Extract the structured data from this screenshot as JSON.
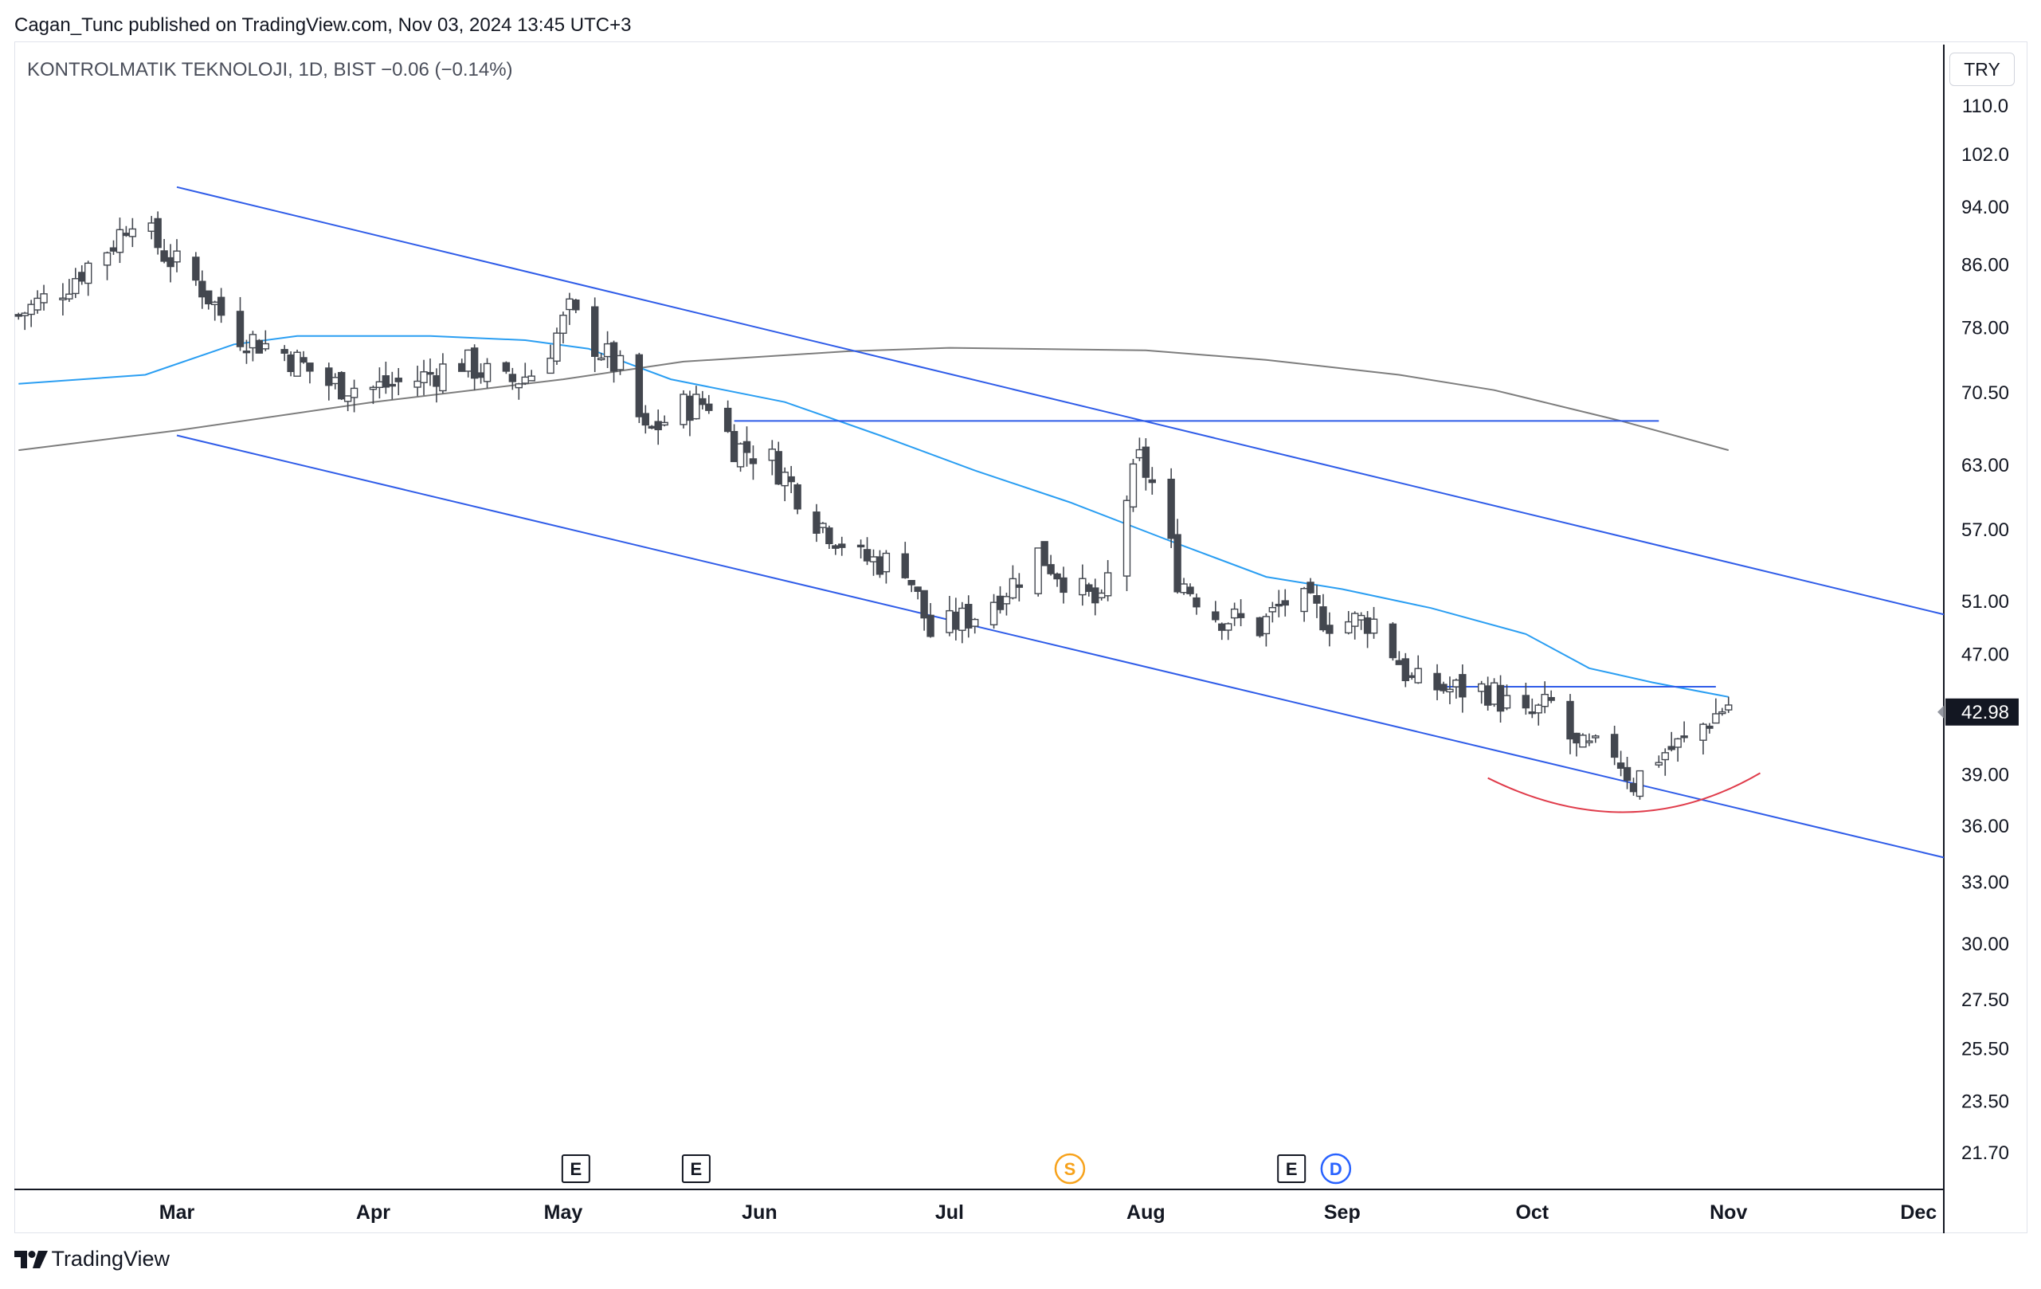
{
  "header": {
    "publish_text": "Cagan_Tunc published on TradingView.com, Nov 03, 2024 13:45 UTC+3"
  },
  "legend": {
    "symbol_text": "KONTROLMATIK TEKNOLOJI, 1D, BIST  −0.06 (−0.14%)"
  },
  "footer": {
    "brand": "TradingView",
    "logo_icon": "tradingview-logo-icon"
  },
  "colors": {
    "up": "#ffffff",
    "down": "#43474f",
    "wick": "#43474f",
    "ma_fast": "#2a9ef2",
    "ma_slow": "#7d7d7d",
    "trend": "#2f5ce8",
    "arc": "#e03c4b",
    "last_price": "#131722",
    "earnings": "#131722",
    "split": "#f7a21b",
    "dividend": "#2962ff"
  },
  "chart_data": {
    "type": "candlestick",
    "symbol": "KONTROLMATIK TEKNOLOJI",
    "interval": "1D",
    "exchange": "BIST",
    "change": "−0.06",
    "change_pct": "(−0.14%)",
    "currency": "TRY",
    "last_price": 42.98,
    "last_price_label": "42.98",
    "y_scale": "log",
    "ylim": [
      20.5,
      115
    ],
    "y_ticks": [
      "110.0",
      "102.0",
      "94.00",
      "86.00",
      "78.00",
      "70.50",
      "63.00",
      "57.00",
      "51.00",
      "47.00",
      "39.00",
      "36.00",
      "33.00",
      "30.00",
      "27.50",
      "25.50",
      "23.50",
      "21.70"
    ],
    "x_ticks": [
      {
        "label": "Mar",
        "date": "2024-03-01"
      },
      {
        "label": "Apr",
        "date": "2024-04-01"
      },
      {
        "label": "May",
        "date": "2024-05-01"
      },
      {
        "label": "Jun",
        "date": "2024-06-01"
      },
      {
        "label": "Jul",
        "date": "2024-07-01"
      },
      {
        "label": "Aug",
        "date": "2024-08-01"
      },
      {
        "label": "Sep",
        "date": "2024-09-01"
      },
      {
        "label": "Oct",
        "date": "2024-10-01"
      },
      {
        "label": "Nov",
        "date": "2024-11-01"
      },
      {
        "label": "Dec",
        "date": "2024-12-01"
      }
    ],
    "price_anchors": [
      [
        "2024-02-05",
        79.5
      ],
      [
        "2024-02-12",
        83.0
      ],
      [
        "2024-02-20",
        89.0
      ],
      [
        "2024-02-23",
        93.0
      ],
      [
        "2024-02-28",
        87.5
      ],
      [
        "2024-03-05",
        83.0
      ],
      [
        "2024-03-10",
        77.5
      ],
      [
        "2024-03-18",
        75.0
      ],
      [
        "2024-03-25",
        71.5
      ],
      [
        "2024-04-01",
        71.0
      ],
      [
        "2024-04-08",
        72.0
      ],
      [
        "2024-04-15",
        74.0
      ],
      [
        "2024-04-22",
        71.5
      ],
      [
        "2024-04-27",
        73.0
      ],
      [
        "2024-05-02",
        80.0
      ],
      [
        "2024-05-06",
        76.0
      ],
      [
        "2024-05-10",
        73.0
      ],
      [
        "2024-05-14",
        66.0
      ],
      [
        "2024-05-20",
        69.0
      ],
      [
        "2024-05-24",
        69.5
      ],
      [
        "2024-05-28",
        65.0
      ],
      [
        "2024-06-03",
        63.5
      ],
      [
        "2024-06-10",
        58.0
      ],
      [
        "2024-06-17",
        54.5
      ],
      [
        "2024-06-24",
        54.0
      ],
      [
        "2024-06-28",
        48.5
      ],
      [
        "2024-07-05",
        50.0
      ],
      [
        "2024-07-11",
        52.5
      ],
      [
        "2024-07-15",
        55.0
      ],
      [
        "2024-07-20",
        52.5
      ],
      [
        "2024-07-25",
        50.5
      ],
      [
        "2024-07-29",
        60.0
      ],
      [
        "2024-07-31",
        63.5
      ],
      [
        "2024-08-03",
        60.0
      ],
      [
        "2024-08-06",
        53.0
      ],
      [
        "2024-08-12",
        50.0
      ],
      [
        "2024-08-19",
        49.0
      ],
      [
        "2024-08-24",
        51.5
      ],
      [
        "2024-08-30",
        49.5
      ],
      [
        "2024-09-06",
        49.5
      ],
      [
        "2024-09-12",
        45.0
      ],
      [
        "2024-09-18",
        44.5
      ],
      [
        "2024-09-24",
        44.5
      ],
      [
        "2024-09-30",
        42.5
      ],
      [
        "2024-10-04",
        43.5
      ],
      [
        "2024-10-08",
        40.5
      ],
      [
        "2024-10-14",
        40.5
      ],
      [
        "2024-10-17",
        38.5
      ],
      [
        "2024-10-20",
        40.0
      ],
      [
        "2024-10-25",
        41.0
      ],
      [
        "2024-10-29",
        42.5
      ],
      [
        "2024-11-01",
        43.5
      ],
      [
        "2024-11-02",
        42.98
      ]
    ],
    "ma_fast": [
      [
        "2024-02-05",
        71.5
      ],
      [
        "2024-02-25",
        72.5
      ],
      [
        "2024-03-10",
        76.0
      ],
      [
        "2024-03-20",
        77.0
      ],
      [
        "2024-04-10",
        77.0
      ],
      [
        "2024-04-25",
        76.5
      ],
      [
        "2024-05-05",
        75.5
      ],
      [
        "2024-05-18",
        72.0
      ],
      [
        "2024-06-05",
        69.5
      ],
      [
        "2024-06-20",
        66.0
      ],
      [
        "2024-07-05",
        62.5
      ],
      [
        "2024-07-20",
        59.5
      ],
      [
        "2024-08-05",
        56.0
      ],
      [
        "2024-08-20",
        53.0
      ],
      [
        "2024-09-01",
        52.0
      ],
      [
        "2024-09-15",
        50.5
      ],
      [
        "2024-09-30",
        48.5
      ],
      [
        "2024-10-10",
        46.0
      ],
      [
        "2024-10-20",
        45.0
      ],
      [
        "2024-11-01",
        44.0
      ]
    ],
    "ma_slow": [
      [
        "2024-02-05",
        64.5
      ],
      [
        "2024-03-01",
        66.5
      ],
      [
        "2024-04-01",
        69.5
      ],
      [
        "2024-05-01",
        72.0
      ],
      [
        "2024-05-20",
        74.0
      ],
      [
        "2024-06-15",
        75.2
      ],
      [
        "2024-07-01",
        75.6
      ],
      [
        "2024-08-01",
        75.3
      ],
      [
        "2024-08-20",
        74.2
      ],
      [
        "2024-09-10",
        72.5
      ],
      [
        "2024-09-25",
        70.8
      ],
      [
        "2024-10-15",
        67.5
      ],
      [
        "2024-11-01",
        64.5
      ]
    ],
    "drawings": [
      {
        "type": "trendline",
        "from": [
          "2024-03-01",
          97.0
        ],
        "to": [
          "2024-12-05",
          50.0
        ]
      },
      {
        "type": "trendline",
        "from": [
          "2024-03-01",
          66.0
        ],
        "to": [
          "2024-12-05",
          34.3
        ]
      },
      {
        "type": "hline",
        "from": [
          "2024-05-28",
          67.5
        ],
        "to": [
          "2024-10-21",
          67.5
        ]
      },
      {
        "type": "hline",
        "from": [
          "2024-09-17",
          44.7
        ],
        "to": [
          "2024-10-30",
          44.7
        ]
      },
      {
        "type": "arc",
        "from": [
          "2024-09-24",
          38.8
        ],
        "apex": [
          "2024-10-16",
          36.8
        ],
        "to": [
          "2024-11-06",
          39.1
        ]
      }
    ],
    "events": [
      {
        "label": "E",
        "kind": "earnings",
        "date": "2024-05-03"
      },
      {
        "label": "E",
        "kind": "earnings",
        "date": "2024-05-22"
      },
      {
        "label": "S",
        "kind": "split",
        "date": "2024-07-20"
      },
      {
        "label": "E",
        "kind": "earnings",
        "date": "2024-08-24"
      },
      {
        "label": "D",
        "kind": "dividend",
        "date": "2024-08-31"
      }
    ],
    "grid": false
  }
}
